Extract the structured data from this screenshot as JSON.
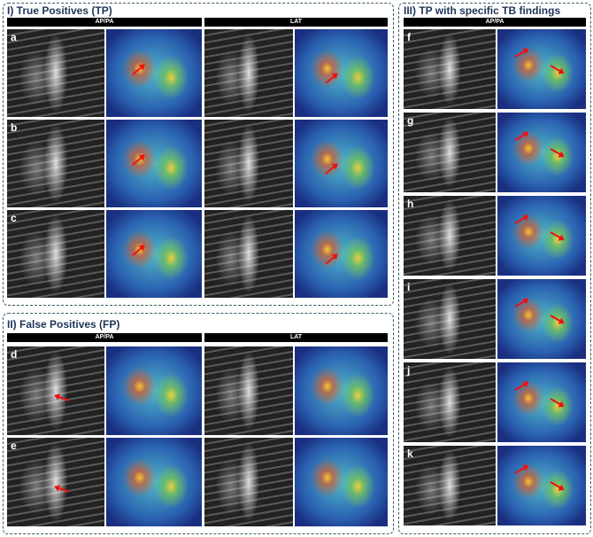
{
  "panels": {
    "tp": {
      "title": "I) True Positives (TP)",
      "col1": "AP/PA",
      "col2": "LAT",
      "rows": [
        "a",
        "b",
        "c"
      ]
    },
    "fp": {
      "title": "II) False Positives (FP)",
      "col1": "AP/PA",
      "col2": "LAT",
      "rows": [
        "d",
        "e"
      ]
    },
    "tb": {
      "title": "III) TP with specific TB findings",
      "col1": "AP/PA",
      "rows": [
        "f",
        "g",
        "h",
        "i",
        "j",
        "k"
      ]
    }
  },
  "colors": {
    "border": "#3a5a6a",
    "title": "#1d3557",
    "arrow": "#e11111"
  }
}
